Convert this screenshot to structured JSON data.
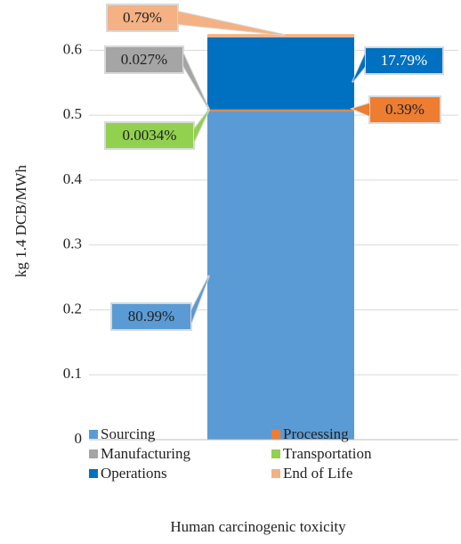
{
  "chart_data": {
    "type": "stacked_bar",
    "y_label": "kg 1.4 DCB/MWh",
    "categories": [
      "Human carcinogenic toxicity"
    ],
    "ylim": [
      0,
      0.65
    ],
    "yticks": [
      0,
      0.1,
      0.2,
      0.3,
      0.4,
      0.5,
      0.6
    ],
    "grid": true,
    "series": [
      {
        "name": "Sourcing",
        "color": "#5b9bd5",
        "values": [
          0.50619
        ],
        "value_labels": [
          "80.99%"
        ]
      },
      {
        "name": "Processing",
        "color": "#ed7d31",
        "values": [
          0.00244
        ],
        "value_labels": [
          "0.39%"
        ]
      },
      {
        "name": "Manufacturing",
        "color": "#a5a5a5",
        "values": [
          0.000169
        ],
        "value_labels": [
          "0.027%"
        ]
      },
      {
        "name": "Transportation",
        "color": "#92d050",
        "values": [
          2.13e-05
        ],
        "value_labels": [
          "0.0034%"
        ]
      },
      {
        "name": "Operations",
        "color": "#0070c0",
        "values": [
          0.11119
        ],
        "value_labels": [
          "17.79%"
        ]
      },
      {
        "name": "End of Life",
        "color": "#f4b183",
        "values": [
          0.00494
        ],
        "value_labels": [
          "0.79%"
        ]
      }
    ]
  }
}
